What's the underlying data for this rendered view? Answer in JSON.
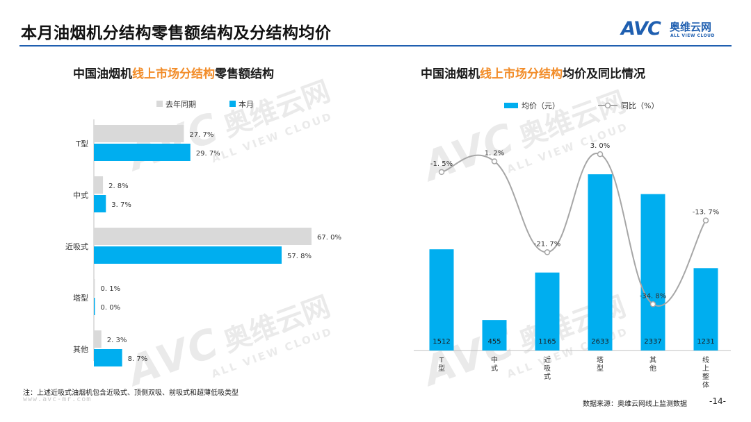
{
  "header": {
    "title": "本月油烟机分结构零售额结构及分结构均价",
    "logo_text": "AVC",
    "logo_cn": "奥维云网",
    "logo_en": "ALL VIEW CLOUD"
  },
  "watermark": {
    "main": "AVC",
    "cn": "奥维云网",
    "en": "ALL VIEW CLOUD"
  },
  "left_title": {
    "prefix": "中国油烟机",
    "highlight": "线上市场分结构",
    "suffix": "零售额结构"
  },
  "right_title": {
    "prefix": "中国油烟机",
    "highlight": "线上市场分结构",
    "suffix": "均价及同比情况"
  },
  "colors": {
    "accent": "#1f5fb0",
    "highlight": "#f28c28",
    "bar_current": "#00aeef",
    "bar_last": "#d9d9d9",
    "line": "#a6a6a6"
  },
  "chart_data": [
    {
      "type": "bar",
      "orientation": "horizontal",
      "categories": [
        "T型",
        "中式",
        "近吸式",
        "塔型",
        "其他"
      ],
      "series": [
        {
          "name": "去年同期",
          "values": [
            27.7,
            2.8,
            67.0,
            0.1,
            2.3
          ]
        },
        {
          "name": "本月",
          "values": [
            29.7,
            3.7,
            57.8,
            0.0,
            8.7
          ]
        }
      ],
      "labels_last": [
        "27. 7%",
        "2. 8%",
        "67. 0%",
        "0. 1%",
        "2. 3%"
      ],
      "labels_current": [
        "29. 7%",
        "3. 7%",
        "57. 8%",
        "0. 0%",
        "8. 7%"
      ],
      "xlim": [
        0,
        70
      ],
      "legend_position": "top"
    },
    {
      "type": "bar",
      "categories": [
        "T型",
        "中式",
        "近吸式",
        "塔型",
        "其他",
        "线上整体"
      ],
      "category_chars": [
        [
          "T",
          "型"
        ],
        [
          "中",
          "式"
        ],
        [
          "近",
          "吸",
          "式"
        ],
        [
          "塔",
          "型"
        ],
        [
          "其",
          "他"
        ],
        [
          "线",
          "上",
          "整",
          "体"
        ]
      ],
      "series": [
        {
          "name": "均价（元）",
          "type": "bar",
          "values": [
            1512,
            455,
            1165,
            2633,
            2337,
            1231
          ]
        },
        {
          "name": "同比（%）",
          "type": "line",
          "values": [
            -1.5,
            1.2,
            -21.7,
            3.0,
            -34.8,
            -13.7
          ]
        }
      ],
      "bar_labels": [
        "1512",
        "455",
        "1165",
        "2633",
        "2337",
        "1231"
      ],
      "line_labels": [
        "-1. 5%",
        "1. 2%",
        "-21. 7%",
        "3. 0%",
        "-34. 8%",
        "-13. 7%"
      ],
      "ylim": [
        0,
        2800
      ],
      "y2lim": [
        -40,
        6
      ],
      "legend_position": "top"
    }
  ],
  "footer": {
    "note": "注：上述近吸式油烟机包含近吸式、顶侧双吸、前吸式和超薄低吸类型",
    "site": "www.avc-mr.com",
    "source": "数据来源：奥维云网线上监测数据",
    "page": "-14-"
  }
}
